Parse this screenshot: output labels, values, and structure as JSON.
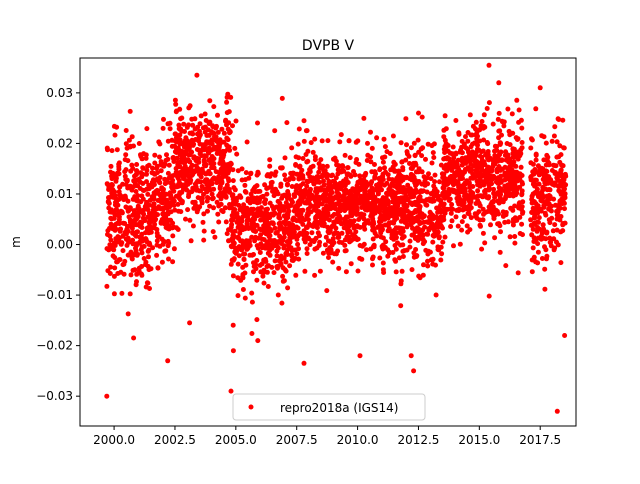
{
  "chart_data": {
    "type": "scatter",
    "title": "DVPB V",
    "xlabel": "",
    "ylabel": "m",
    "xlim": [
      1998.6,
      2018.97
    ],
    "ylim": [
      -0.0359,
      0.0369
    ],
    "xticks": [
      2000.0,
      2002.5,
      2005.0,
      2007.5,
      2010.0,
      2012.5,
      2015.0,
      2017.5
    ],
    "xtick_labels": [
      "2000.0",
      "2002.5",
      "2005.0",
      "2007.5",
      "2010.0",
      "2012.5",
      "2015.0",
      "2017.5"
    ],
    "yticks": [
      -0.03,
      -0.02,
      -0.01,
      0.0,
      0.01,
      0.02,
      0.03
    ],
    "ytick_labels": [
      "−0.03",
      "−0.02",
      "−0.01",
      "0.00",
      "0.01",
      "0.02",
      "0.03"
    ],
    "grid": false,
    "legend": {
      "placement": "lower-center",
      "entries": [
        "repro2018a (IGS14)"
      ]
    },
    "series": [
      {
        "name": "repro2018a (IGS14)",
        "color": "#ff0000",
        "marker": "circle",
        "daily_segments_approx": [
          {
            "from": 1999.7,
            "to": 2001.5,
            "mean": 0.006,
            "sd": 0.0065
          },
          {
            "from": 2001.5,
            "to": 2002.5,
            "mean": 0.008,
            "sd": 0.006
          },
          {
            "from": 2002.5,
            "to": 2004.8,
            "mean": 0.016,
            "sd": 0.0055
          },
          {
            "from": 2004.8,
            "to": 2007.5,
            "mean": 0.004,
            "sd": 0.006
          },
          {
            "from": 2007.5,
            "to": 2011.0,
            "mean": 0.008,
            "sd": 0.005
          },
          {
            "from": 2011.0,
            "to": 2013.5,
            "mean": 0.007,
            "sd": 0.0055
          },
          {
            "from": 2013.5,
            "to": 2016.8,
            "mean": 0.013,
            "sd": 0.005
          },
          {
            "from": 2017.1,
            "to": 2018.55,
            "mean": 0.01,
            "sd": 0.006
          }
        ],
        "outliers": [
          [
            1999.7,
            -0.03
          ],
          [
            2004.8,
            -0.029
          ],
          [
            2018.2,
            -0.033
          ],
          [
            2003.4,
            0.0335
          ],
          [
            2017.5,
            0.031
          ],
          [
            2015.8,
            0.032
          ],
          [
            2007.8,
            0.0245
          ],
          [
            2007.8,
            -0.0235
          ],
          [
            2012.3,
            -0.025
          ],
          [
            2012.2,
            -0.022
          ],
          [
            2010.1,
            -0.022
          ],
          [
            2002.2,
            -0.023
          ],
          [
            2018.5,
            -0.018
          ],
          [
            2000.8,
            -0.0185
          ],
          [
            2012.5,
            0.026
          ],
          [
            2003.1,
            -0.0155
          ],
          [
            2005.9,
            -0.019
          ],
          [
            2004.9,
            -0.021
          ]
        ]
      }
    ]
  }
}
